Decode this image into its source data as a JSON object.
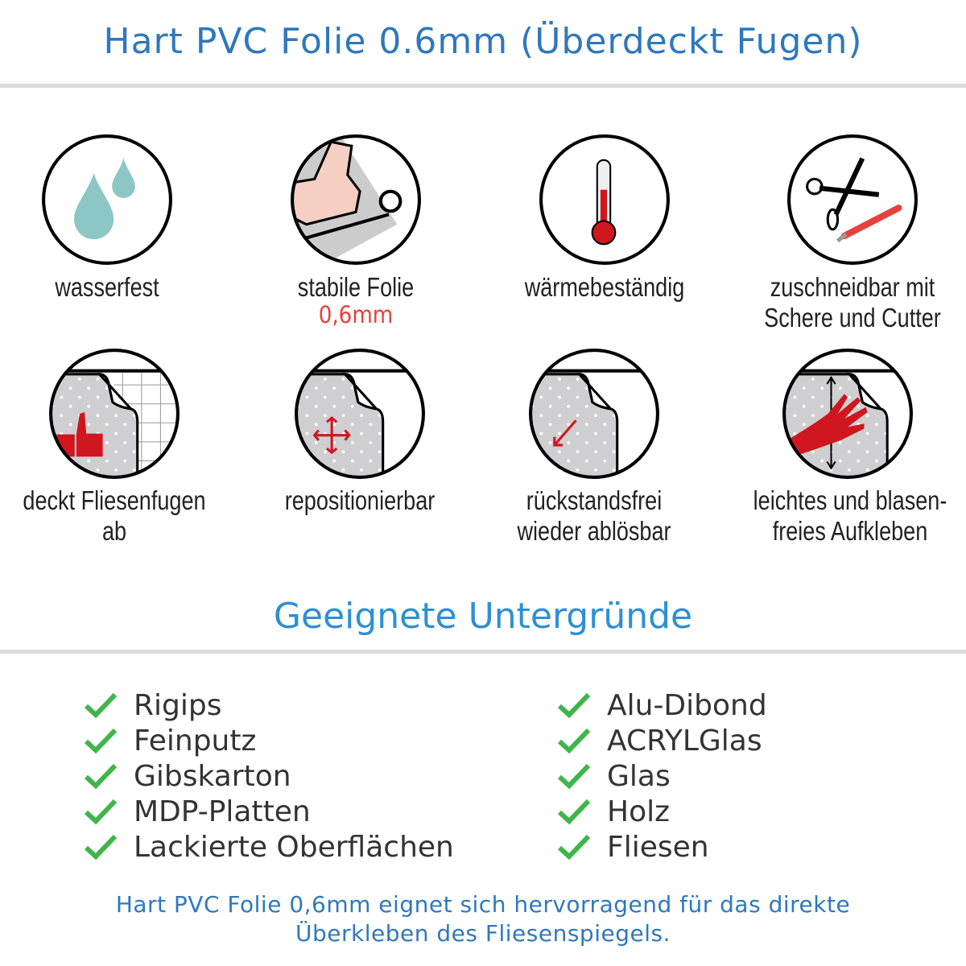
{
  "title": "Hart PVC Folie 0.6mm (Überdeckt Fugen)",
  "features": [
    {
      "icon": "water-drops-icon",
      "label": "wasserfest"
    },
    {
      "icon": "strong-arm-icon",
      "label": "stabile Folie",
      "sub": "0,6mm"
    },
    {
      "icon": "thermometer-icon",
      "label": "wärmebeständig"
    },
    {
      "icon": "scissors-cutter-icon",
      "label": "zuschneidbar mit",
      "label2": "Schere und Cutter"
    },
    {
      "icon": "thumbs-up-tiles-icon",
      "label": "deckt Fliesenfugen ab"
    },
    {
      "icon": "move-arrows-icon",
      "label": "repositionierbar"
    },
    {
      "icon": "peel-arrow-icon",
      "label": "rückstandsfrei",
      "label2": "wieder ablösbar"
    },
    {
      "icon": "hand-smooth-icon",
      "label": "leichtes und blasen-",
      "label2": "freies Aufkleben"
    }
  ],
  "surfaces_title": "Geeignete Untergründe",
  "surfaces_left": [
    "Rigips",
    "Feinputz",
    "Gibskarton",
    "MDP-Platten",
    "Lackierte Oberflächen"
  ],
  "surfaces_right": [
    "Alu-Dibond",
    "ACRYLGlas",
    "Glas",
    "Holz",
    "Fliesen"
  ],
  "footer": {
    "line1": "Hart PVC Folie 0,6mm eignet sich hervorragend für das direkte",
    "line2": "Überkleben des Fliesenspiegels."
  },
  "colors": {
    "title": "#2e78bd",
    "heading": "#2d8fd5",
    "check": "#3fb54a",
    "accent_red": "#d0161f",
    "drop": "#8cc7c5"
  }
}
